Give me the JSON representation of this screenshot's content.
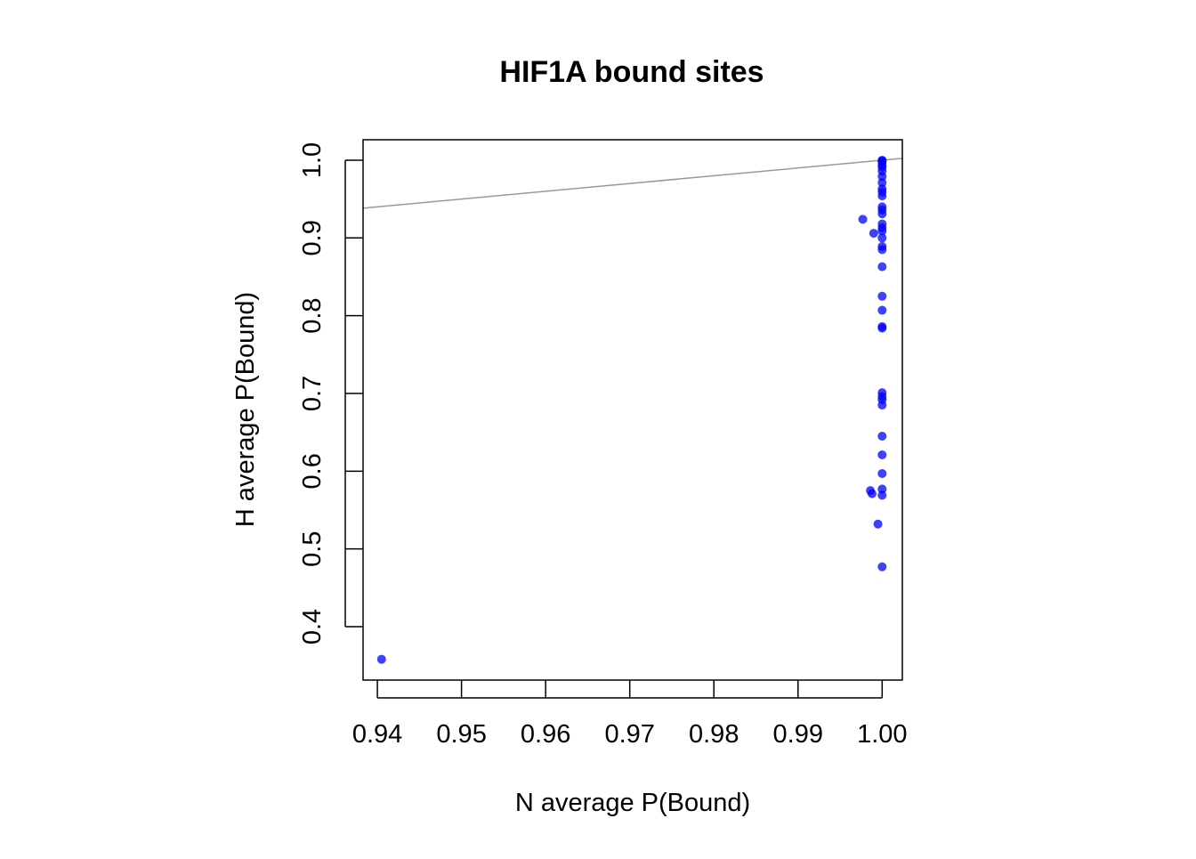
{
  "chart_data": {
    "type": "scatter",
    "title": "HIF1A bound sites",
    "xlabel": "N average P(Bound)",
    "ylabel": "H average P(Bound)",
    "xlim": [
      0.9383,
      1.0024
    ],
    "ylim": [
      0.3313,
      1.0263
    ],
    "xticks": [
      0.94,
      0.95,
      0.96,
      0.97,
      0.98,
      0.99,
      1.0
    ],
    "xtick_labels": [
      "0.94",
      "0.95",
      "0.96",
      "0.97",
      "0.98",
      "0.99",
      "1.00"
    ],
    "yticks": [
      0.4,
      0.5,
      0.6,
      0.7,
      0.8,
      0.9,
      1.0
    ],
    "ytick_labels": [
      "0.4",
      "0.5",
      "0.6",
      "0.7",
      "0.8",
      "0.9",
      "1.0"
    ],
    "grid": false,
    "reference_line": {
      "slope": 1,
      "intercept": 0,
      "color": "#999999"
    },
    "point_color": "#0000ff",
    "points": [
      [
        0.9405,
        0.358
      ],
      [
        0.9977,
        0.924
      ],
      [
        0.999,
        0.906
      ],
      [
        0.9986,
        0.575
      ],
      [
        0.9988,
        0.571
      ],
      [
        0.9995,
        0.532
      ],
      [
        1.0,
        1.0
      ],
      [
        1.0,
        0.999
      ],
      [
        1.0,
        0.998
      ],
      [
        1.0,
        0.994
      ],
      [
        1.0,
        0.991
      ],
      [
        1.0,
        0.986
      ],
      [
        1.0,
        0.979
      ],
      [
        1.0,
        0.971
      ],
      [
        1.0,
        0.963
      ],
      [
        1.0,
        0.959
      ],
      [
        1.0,
        0.954
      ],
      [
        1.0,
        0.94
      ],
      [
        1.0,
        0.936
      ],
      [
        1.0,
        0.931
      ],
      [
        1.0,
        0.918
      ],
      [
        1.0,
        0.913
      ],
      [
        1.0,
        0.909
      ],
      [
        1.0,
        0.9
      ],
      [
        1.0,
        0.889
      ],
      [
        1.0,
        0.885
      ],
      [
        1.0,
        0.863
      ],
      [
        1.0,
        0.825
      ],
      [
        1.0,
        0.807
      ],
      [
        1.0,
        0.786
      ],
      [
        1.0,
        0.784
      ],
      [
        1.0,
        0.701
      ],
      [
        1.0,
        0.696
      ],
      [
        1.0,
        0.692
      ],
      [
        1.0,
        0.685
      ],
      [
        1.0,
        0.645
      ],
      [
        1.0,
        0.621
      ],
      [
        1.0,
        0.597
      ],
      [
        1.0,
        0.577
      ],
      [
        1.0,
        0.569
      ],
      [
        1.0,
        0.477
      ]
    ]
  }
}
